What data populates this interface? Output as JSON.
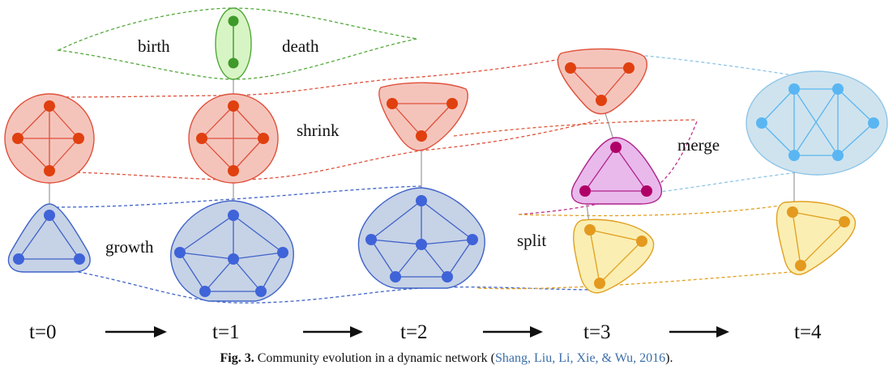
{
  "colors": {
    "red_fill": "#f4c4bb",
    "red_stroke": "#e0503a",
    "red_node": "#e0400f",
    "blue_fill": "#c6d2e6",
    "blue_stroke": "#3f63c8",
    "blue_node": "#3f63d8",
    "green_fill": "#d7f5c4",
    "green_stroke": "#52a83a",
    "green_node": "#3f9a2a",
    "magenta_fill": "#e9b9ec",
    "magenta_stroke": "#b0238a",
    "magenta_node": "#b00067",
    "yellow_fill": "#fbeeb3",
    "yellow_stroke": "#e0a020",
    "yellow_node": "#e39a1f",
    "lightblue_fill": "#cfe3ee",
    "lightblue_stroke": "#8ec5e8",
    "lightblue_node": "#5ab6f2"
  },
  "labels": {
    "birth": "birth",
    "death": "death",
    "shrink": "shrink",
    "growth": "growth",
    "merge": "merge",
    "split": "split"
  },
  "timeline": [
    "t=0",
    "t=1",
    "t=2",
    "t=3",
    "t=4"
  ],
  "caption": {
    "fig_label": "Fig. 3.",
    "text": " Community evolution in a dynamic network (",
    "citation": "Shang, Liu, Li, Xie, & Wu, 2016",
    "tail": ")."
  }
}
